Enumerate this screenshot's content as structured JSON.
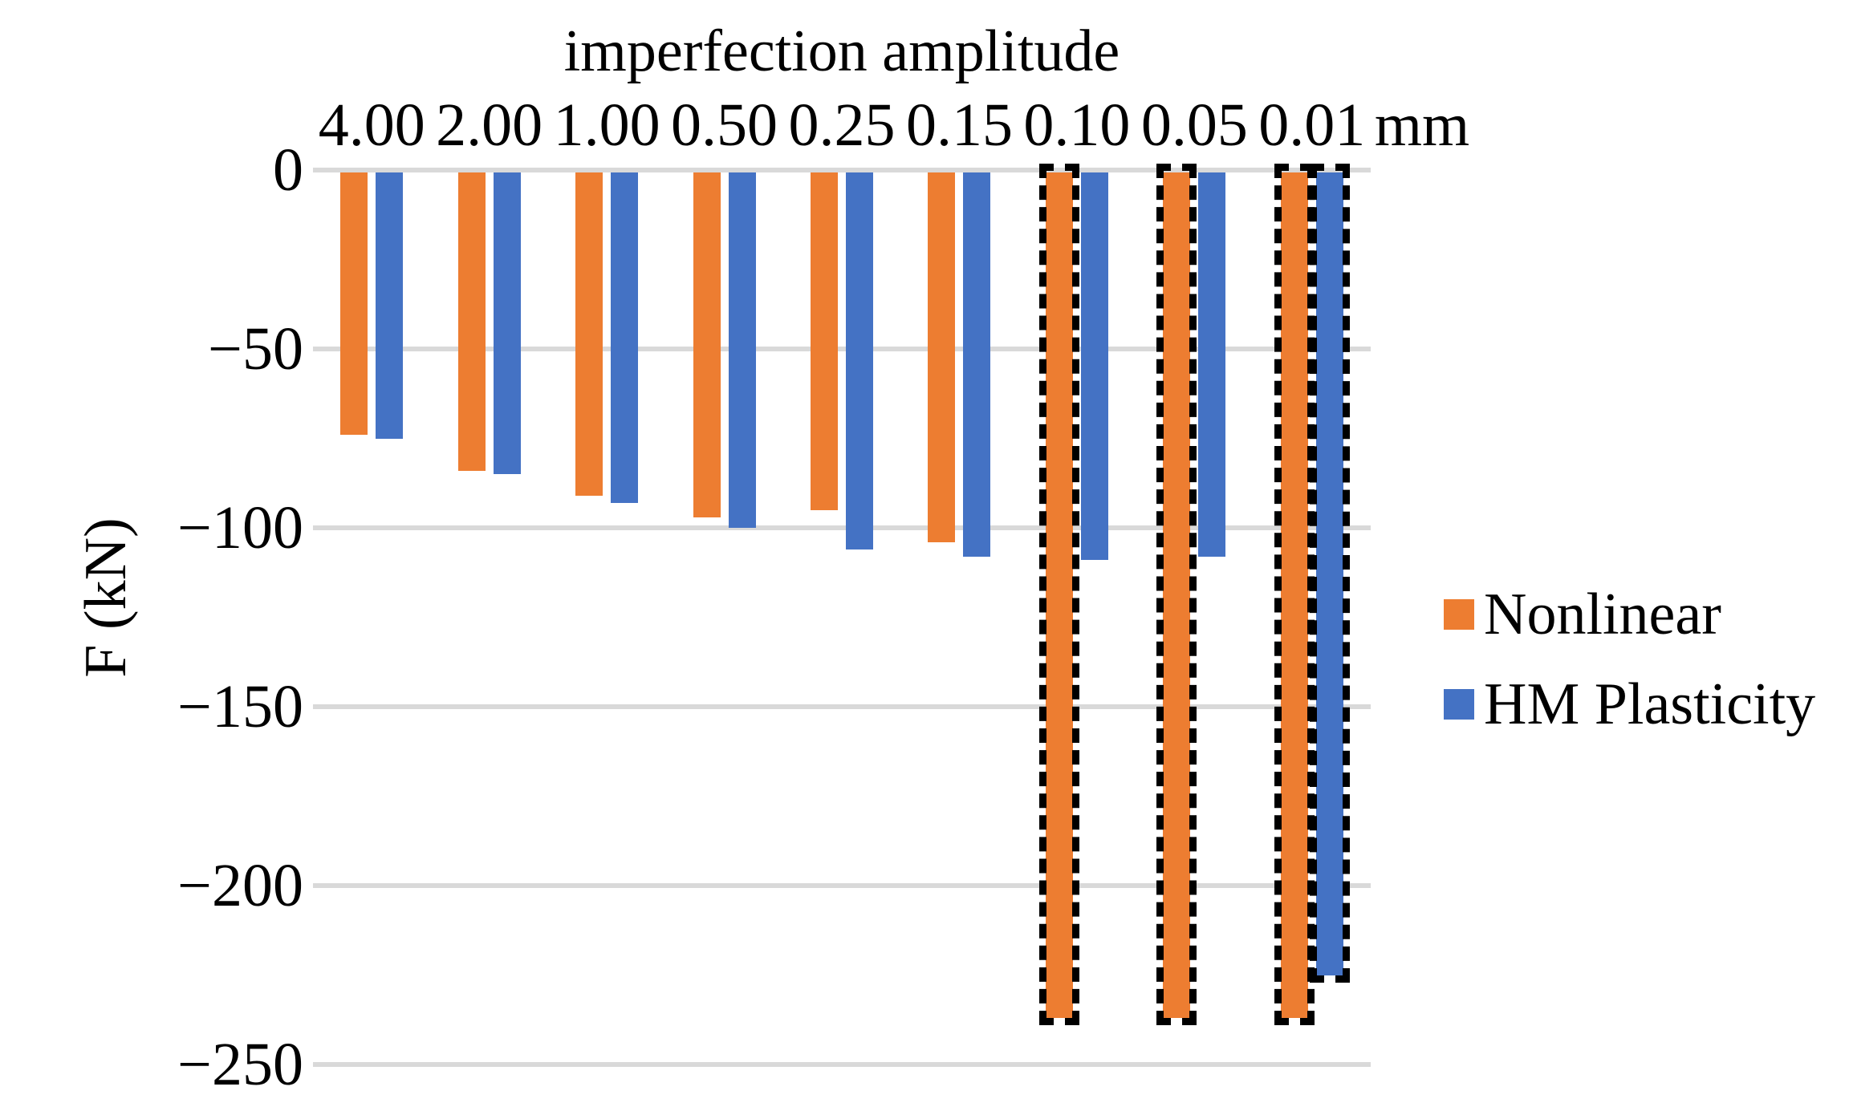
{
  "chart_data": {
    "type": "bar",
    "title": "imperfection amplitude",
    "unit_label": "mm",
    "ylabel": "F (kN)",
    "categories": [
      "4.00",
      "2.00",
      "1.00",
      "0.50",
      "0.25",
      "0.15",
      "0.10",
      "0.05",
      "0.01"
    ],
    "series": [
      {
        "name": "Nonlinear",
        "color": "#ED7D31",
        "values": [
          -74,
          -84,
          -91,
          -97,
          -95,
          -104,
          -237,
          -237,
          -237
        ],
        "dashed_outline": [
          false,
          false,
          false,
          false,
          false,
          false,
          true,
          true,
          true
        ]
      },
      {
        "name": "HM Plasticity",
        "color": "#4472C4",
        "values": [
          -75,
          -85,
          -93,
          -100,
          -106,
          -108,
          -109,
          -108,
          -225
        ],
        "dashed_outline": [
          false,
          false,
          false,
          false,
          false,
          false,
          false,
          false,
          true
        ]
      }
    ],
    "y_ticks": [
      0,
      -50,
      -100,
      -150,
      -200,
      -250
    ],
    "y_tick_labels": [
      "0",
      "−50",
      "−100",
      "−150",
      "−200",
      "−250"
    ],
    "ylim": [
      -250,
      0
    ],
    "grid": true,
    "legend_position": "right",
    "gridline_color": "#D9D9D9",
    "outline_color": "#000000",
    "background_color": "#FFFFFF"
  }
}
